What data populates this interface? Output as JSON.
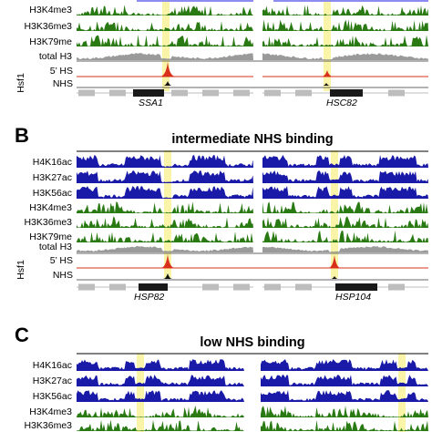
{
  "colors": {
    "acetyl": "#1a1aa8",
    "methyl": "#2a7a14",
    "total": "#9a9a9a",
    "hs_peak": "#d8301a",
    "nhs_peak": "#111111",
    "highlight": "#f7f08a",
    "annotation": "#bdbdbd",
    "gene_box": "#1a1a1a",
    "top_bar": "#8c8cf0"
  },
  "panelA": {
    "tracks": [
      "H3K4me3",
      "H3K36me3",
      "H3K79me",
      "total H3"
    ],
    "hsf_label": "Hsf1",
    "hs_label": "5’ HS",
    "nhs_label": "NHS",
    "genes": [
      "SSA1",
      "HSC82"
    ]
  },
  "panelB": {
    "letter": "B",
    "title": "intermediate NHS binding",
    "tracks": [
      "H4K16ac",
      "H3K27ac",
      "H3K56ac",
      "H3K4me3",
      "H3K36me3",
      "H3K79me",
      "total H3"
    ],
    "hsf_label": "Hsf1",
    "hs_label": "5’ HS",
    "nhs_label": "NHS",
    "genes": [
      "HSP82",
      "HSP104"
    ]
  },
  "panelC": {
    "letter": "C",
    "title": "low NHS binding",
    "tracks": [
      "H4K16ac",
      "H3K27ac",
      "H3K56ac",
      "H3K4me3",
      "H3K36me3"
    ]
  }
}
